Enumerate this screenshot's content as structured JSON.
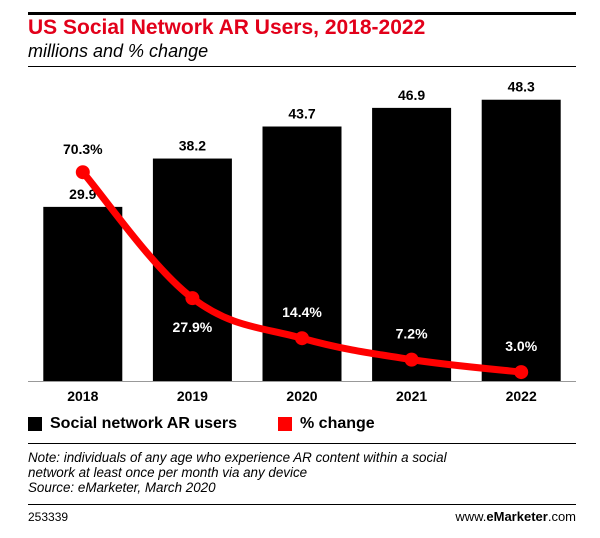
{
  "header": {
    "title": "US Social Network AR Users, 2018-2022",
    "subtitle": "millions and % change"
  },
  "chart_data": {
    "type": "bar",
    "title": "US Social Network AR Users, 2018-2022",
    "subtitle": "millions and % change",
    "categories": [
      "2018",
      "2019",
      "2020",
      "2021",
      "2022"
    ],
    "series": [
      {
        "name": "Social network AR users",
        "type": "bar",
        "values": [
          29.9,
          38.2,
          43.7,
          46.9,
          48.3
        ],
        "labels": [
          "29.9",
          "38.2",
          "43.7",
          "46.9",
          "48.3"
        ],
        "color": "#000000"
      },
      {
        "name": "% change",
        "type": "line",
        "values": [
          70.3,
          27.9,
          14.4,
          7.2,
          3.0
        ],
        "labels": [
          "70.3%",
          "27.9%",
          "14.4%",
          "7.2%",
          "3.0%"
        ],
        "color": "#ff0000"
      }
    ],
    "ylim_bars": [
      0,
      51
    ],
    "ylim_line": [
      0,
      100
    ],
    "grid": false,
    "legend": "bottom-left"
  },
  "legend": {
    "bars_label": "Social network AR users",
    "line_label": "% change",
    "bars_color": "#000000",
    "line_color": "#ff0000"
  },
  "note": {
    "line1": "Note: individuals of any age who experience AR content within a social",
    "line2": "network at least once per month via any device",
    "line3": "Source: eMarketer, March 2020"
  },
  "footer": {
    "id": "253339",
    "brand_prefix": "www.",
    "brand_bold": "eMarketer",
    "brand_suffix": ".com"
  }
}
